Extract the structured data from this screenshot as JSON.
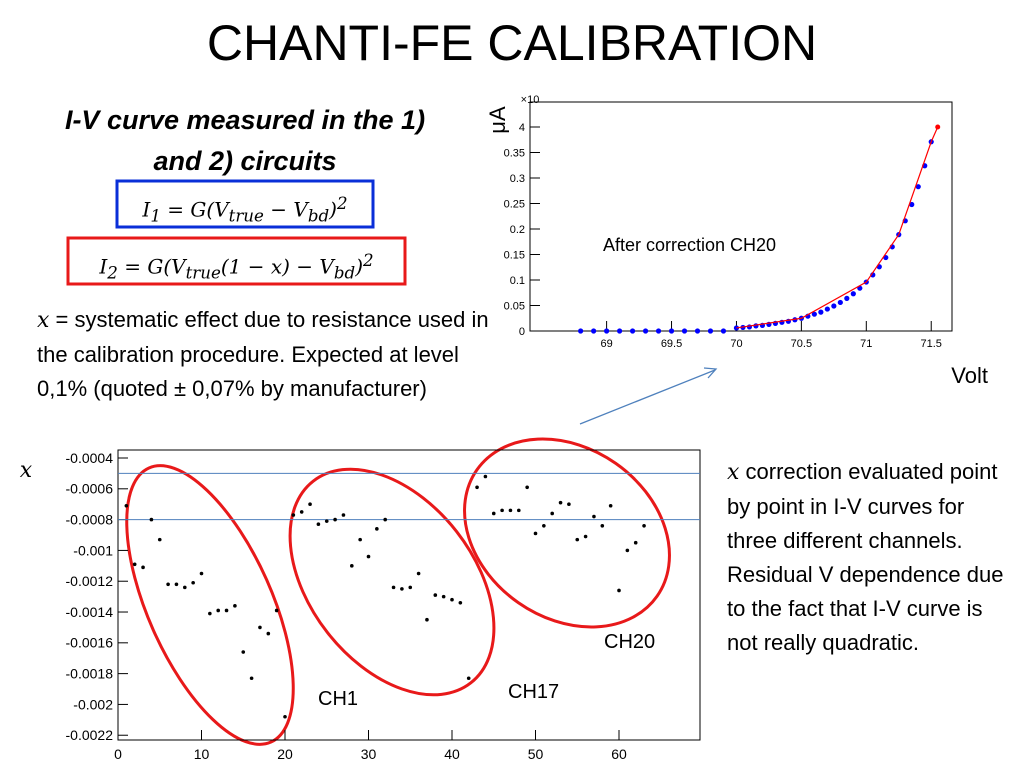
{
  "title": "CHANTI-FE CALIBRATION",
  "subtitle": "I-V curve measured in the 1) and 2) circuits",
  "formula_1": [
    "I",
    "1",
    " = G(V",
    "true",
    " − V",
    "bd",
    ")",
    "2"
  ],
  "formula_2": [
    "I",
    "2",
    " = G(V",
    "true",
    "(1 − x) − V",
    "bd",
    ")",
    "2"
  ],
  "note_left": [
    "x",
    " = systematic effect due to resistance used in the calibration procedure. Expected at level 0,1% (quoted  ± 0,07% by manufacturer)"
  ],
  "note_right": [
    "x",
    " correction evaluated point by point in I-V curves for three different channels. Residual V dependence due to the fact  that I-V curve is not  really quadratic."
  ],
  "chart_data": [
    {
      "type": "scatter",
      "ylabel": "μA",
      "xlabel": "Volt",
      "exponent": "×10",
      "annotation": "After correction CH20",
      "xlim": [
        68.41,
        71.66
      ],
      "xticks": [
        69,
        69.5,
        70,
        70.5,
        71,
        71.5
      ],
      "ylim": [
        0,
        0.449
      ],
      "yticks": [
        0,
        0.05,
        0.1,
        0.15,
        0.2,
        0.25,
        0.3,
        0.35,
        {
          "value": 0.4,
          "label": "4"
        }
      ],
      "series": [
        {
          "color": "#0000ff",
          "line": false,
          "x": [
            68.8,
            68.9,
            69.0,
            69.1,
            69.2,
            69.3,
            69.4,
            69.5,
            69.6,
            69.7,
            69.8,
            69.9,
            70.0,
            70.05,
            70.1,
            70.15,
            70.2,
            70.25,
            70.3,
            70.35,
            70.4,
            70.45,
            70.5,
            70.55,
            70.6,
            70.65,
            70.7,
            70.75,
            70.8,
            70.85,
            70.9,
            70.95,
            71.0,
            71.05,
            71.1,
            71.15,
            71.2,
            71.25,
            71.3,
            71.35,
            71.4,
            71.45,
            71.5
          ],
          "values": [
            0,
            0,
            0,
            0,
            0,
            0,
            0,
            0,
            0,
            0,
            0,
            0,
            0.006,
            0.007,
            0.008,
            0.01,
            0.011,
            0.013,
            0.015,
            0.017,
            0.019,
            0.022,
            0.025,
            0.029,
            0.033,
            0.037,
            0.043,
            0.049,
            0.056,
            0.064,
            0.073,
            0.084,
            0.096,
            0.11,
            0.126,
            0.144,
            0.165,
            0.189,
            0.216,
            0.248,
            0.283,
            0.324,
            0.371
          ]
        },
        {
          "color": "#ff0000",
          "line": true,
          "x": [
            70.0,
            70.5,
            71.0,
            71.25,
            71.5,
            71.55
          ],
          "values": [
            0.006,
            0.025,
            0.096,
            0.189,
            0.371,
            0.4
          ]
        }
      ]
    },
    {
      "type": "scatter",
      "ylabel": "x",
      "xlim": [
        0,
        69.7
      ],
      "xticks": [
        0,
        10,
        20,
        30,
        40,
        50,
        60
      ],
      "ylim": [
        -0.002231,
        -0.000348
      ],
      "yticks": [
        -0.0004,
        -0.0006,
        -0.0008,
        -0.001,
        -0.0012,
        -0.0014,
        -0.0016,
        -0.0018,
        -0.002,
        -0.0022
      ],
      "reference_lines": [
        -0.0005,
        -0.0008
      ],
      "groups": [
        "CH1",
        "CH17",
        "CH20"
      ],
      "series": [
        {
          "color": "#000000",
          "line": false,
          "x": [
            1,
            2,
            3,
            4,
            5,
            6,
            7,
            8,
            9,
            10,
            11,
            12,
            13,
            14,
            15,
            16,
            17,
            18,
            19,
            20,
            21,
            22,
            23,
            24,
            25,
            26,
            27,
            28,
            29,
            30,
            31,
            32,
            33,
            34,
            35,
            36,
            37,
            38,
            39,
            40,
            41,
            42,
            43,
            44,
            45,
            46,
            47,
            48,
            49,
            50,
            51,
            52,
            53,
            54,
            55,
            56,
            57,
            58,
            59,
            60,
            61,
            62,
            63
          ],
          "values": [
            -0.00071,
            -0.00109,
            -0.00111,
            -0.0008,
            -0.00093,
            -0.00122,
            -0.00122,
            -0.00124,
            -0.00121,
            -0.00115,
            -0.00141,
            -0.00139,
            -0.00139,
            -0.00136,
            -0.00166,
            -0.00183,
            -0.0015,
            -0.00154,
            -0.00139,
            -0.00208,
            -0.00077,
            -0.00075,
            -0.0007,
            -0.00083,
            -0.00081,
            -0.0008,
            -0.00077,
            -0.0011,
            -0.00093,
            -0.00104,
            -0.00086,
            -0.0008,
            -0.00124,
            -0.00125,
            -0.00124,
            -0.00115,
            -0.00145,
            -0.00129,
            -0.0013,
            -0.00132,
            -0.00134,
            -0.00183,
            -0.00059,
            -0.00052,
            -0.00076,
            -0.00074,
            -0.00074,
            -0.00074,
            -0.00059,
            -0.00089,
            -0.00084,
            -0.00076,
            -0.00069,
            -0.0007,
            -0.00093,
            -0.00091,
            -0.00078,
            -0.00084,
            -0.00071,
            -0.00126,
            -0.001,
            -0.00095,
            -0.00084
          ]
        }
      ]
    }
  ]
}
